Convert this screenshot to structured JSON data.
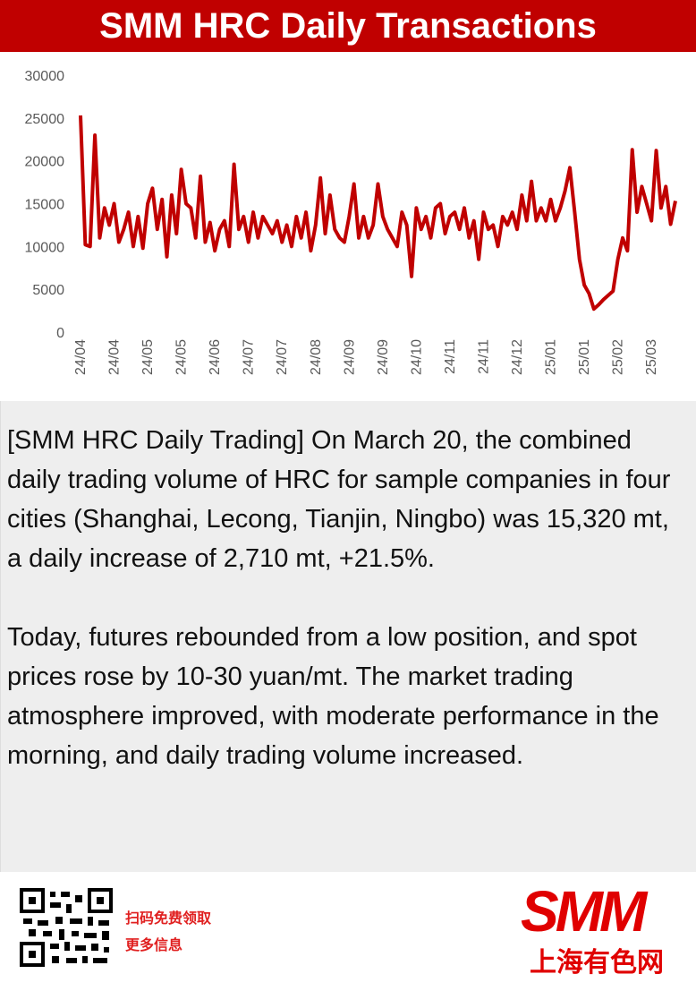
{
  "chart_data": {
    "type": "line",
    "title": "SMM HRC Daily Transactions",
    "categories": [
      "24/04",
      null,
      null,
      null,
      null,
      null,
      null,
      "24/04",
      null,
      null,
      null,
      null,
      null,
      null,
      "24/05",
      null,
      null,
      null,
      null,
      null,
      null,
      "24/05",
      null,
      null,
      null,
      null,
      null,
      null,
      "24/06",
      null,
      null,
      null,
      null,
      null,
      null,
      "24/07",
      null,
      null,
      null,
      null,
      null,
      null,
      "24/07",
      null,
      null,
      null,
      null,
      null,
      null,
      "24/08",
      null,
      null,
      null,
      null,
      null,
      null,
      "24/09",
      null,
      null,
      null,
      null,
      null,
      null,
      "24/09",
      null,
      null,
      null,
      null,
      null,
      null,
      "24/10",
      null,
      null,
      null,
      null,
      null,
      null,
      "24/11",
      null,
      null,
      null,
      null,
      null,
      null,
      "24/11",
      null,
      null,
      null,
      null,
      null,
      null,
      "24/12",
      null,
      null,
      null,
      null,
      null,
      null,
      "25/01",
      null,
      null,
      null,
      null,
      null,
      null,
      "25/01",
      null,
      null,
      null,
      null,
      null,
      null,
      "25/02",
      null,
      null,
      null,
      null,
      null,
      null,
      "25/03",
      null,
      null,
      null,
      null,
      null
    ],
    "series": [
      {
        "color": "#c00000",
        "values": [
          25300,
          10200,
          10000,
          23000,
          11000,
          14500,
          12500,
          15000,
          10500,
          12000,
          14000,
          10000,
          13500,
          9800,
          15000,
          16800,
          12000,
          15500,
          8800,
          16000,
          11500,
          19000,
          15000,
          14500,
          11000,
          18200,
          10500,
          12800,
          9500,
          12000,
          13000,
          10000,
          19600,
          12000,
          13500,
          10500,
          14000,
          11000,
          13500,
          12500,
          11500,
          13000,
          10500,
          12500,
          10000,
          13500,
          11000,
          14000,
          9500,
          12500,
          18000,
          11500,
          16000,
          12000,
          11000,
          10500,
          13500,
          17300,
          11000,
          13500,
          11000,
          12500,
          17300,
          13500,
          12000,
          11000,
          10000,
          14000,
          12500,
          6500,
          14500,
          12000,
          13500,
          11000,
          14500,
          15000,
          11500,
          13500,
          14000,
          12000,
          14500,
          11000,
          13000,
          8500,
          14000,
          12000,
          12500,
          10000,
          13500,
          12500,
          14000,
          12000,
          16000,
          13000,
          17600,
          13000,
          14500,
          13000,
          15500,
          13000,
          14500,
          16500,
          19200,
          14000,
          8500,
          5500,
          4500,
          2700,
          3200,
          3800,
          4300,
          4800,
          8500,
          11000,
          9500,
          21300,
          14000,
          17000,
          15000,
          13000,
          21200,
          14500,
          17000,
          12600,
          15320
        ]
      }
    ],
    "ylim": [
      0,
      30000
    ],
    "yticks": [
      0,
      5000,
      10000,
      15000,
      20000,
      25000,
      30000
    ],
    "grid": false
  },
  "text": [
    "[SMM HRC Daily Trading] On March 20, the combined daily trading volume of HRC for sample companies in four cities (Shanghai, Lecong, Tianjin, Ningbo) was 15,320 mt, a daily increase of 2,710 mt, +21.5%.",
    "Today, futures rebounded from a low position, and spot prices rose by 10-30 yuan/mt. The market trading atmosphere improved, with moderate performance in the morning, and daily trading volume increased."
  ],
  "footer": {
    "qr_caption": [
      "扫码免费领取",
      "更多信息"
    ],
    "logo": "SMM",
    "logo_sub": "上海有色网"
  }
}
